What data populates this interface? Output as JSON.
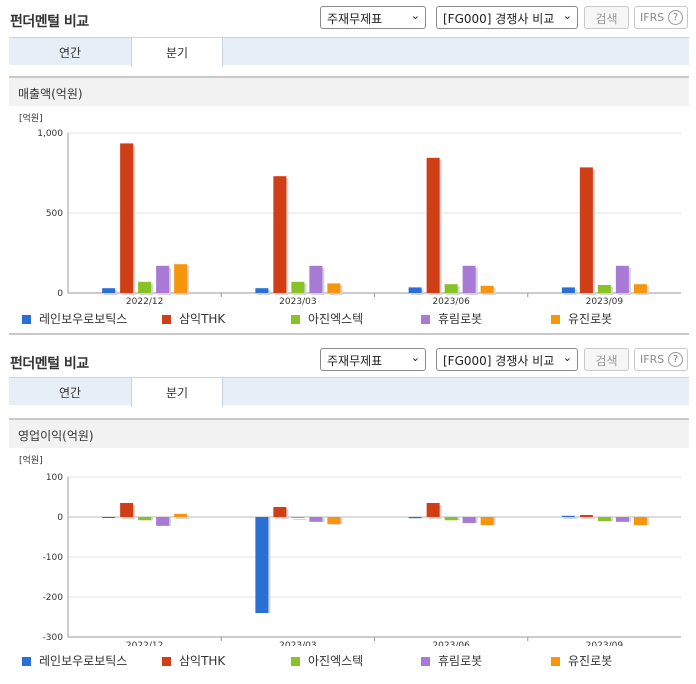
{
  "colors": [
    "#2a6fd6",
    "#cf3e14",
    "#88c226",
    "#a979d6",
    "#f6960f"
  ],
  "panels": [
    {
      "title": "펀더멘털 비교",
      "select1": "주재무제표",
      "select2": "[FG000] 경쟁사 비교",
      "search_label": "검색",
      "ifrs_label": "IFRS",
      "help_label": "?",
      "tabs": [
        "연간",
        "분기"
      ],
      "active_tab": 1,
      "section_title": "매출액(억원)",
      "unit": "[억원]",
      "legend": [
        "레인보우로보틱스",
        "삼익THK",
        "아진엑스텍",
        "휴림로봇",
        "유진로봇"
      ]
    },
    {
      "title": "펀더멘털 비교",
      "select1": "주재무제표",
      "select2": "[FG000] 경쟁사 비교",
      "search_label": "검색",
      "ifrs_label": "IFRS",
      "help_label": "?",
      "tabs": [
        "연간",
        "분기"
      ],
      "active_tab": 1,
      "section_title": "영업이익(억원)",
      "unit": "[억원]",
      "legend": [
        "레인보우로보틱스",
        "삼익THK",
        "아진엑스텍",
        "휴림로봇",
        "유진로봇"
      ]
    }
  ],
  "chart_data": [
    {
      "type": "bar",
      "title": "매출액(억원)",
      "ylabel": "[억원]",
      "categories": [
        "2022/12",
        "2023/03",
        "2023/06",
        "2023/09"
      ],
      "ylim": [
        0,
        1000
      ],
      "yticks": [
        0,
        500,
        1000
      ],
      "ytick_labels": [
        "0",
        "500",
        "1,000"
      ],
      "series": [
        {
          "name": "레인보우로보틱스",
          "values": [
            30,
            30,
            35,
            35
          ]
        },
        {
          "name": "삼익THK",
          "values": [
            935,
            730,
            845,
            785
          ]
        },
        {
          "name": "아진엑스텍",
          "values": [
            70,
            70,
            55,
            50
          ]
        },
        {
          "name": "휴림로봇",
          "values": [
            170,
            170,
            170,
            170
          ]
        },
        {
          "name": "유진로봇",
          "values": [
            180,
            60,
            45,
            55
          ]
        }
      ],
      "legend_position": "bottom"
    },
    {
      "type": "bar",
      "title": "영업이익(억원)",
      "ylabel": "[억원]",
      "categories": [
        "2022/12",
        "2023/03",
        "2023/06",
        "2023/09"
      ],
      "ylim": [
        -300,
        100
      ],
      "yticks": [
        -300,
        -200,
        -100,
        0,
        100
      ],
      "ytick_labels": [
        "-300",
        "-200",
        "-100",
        "0",
        "100"
      ],
      "series": [
        {
          "name": "레인보우로보틱스",
          "values": [
            -2,
            -240,
            -3,
            3
          ]
        },
        {
          "name": "삼익THK",
          "values": [
            35,
            25,
            35,
            5
          ]
        },
        {
          "name": "아진엑스텍",
          "values": [
            -8,
            0,
            -8,
            -10
          ]
        },
        {
          "name": "휴림로봇",
          "values": [
            -22,
            -12,
            -15,
            -12
          ]
        },
        {
          "name": "유진로봇",
          "values": [
            8,
            -18,
            -20,
            -20
          ]
        }
      ],
      "legend_position": "bottom"
    }
  ]
}
